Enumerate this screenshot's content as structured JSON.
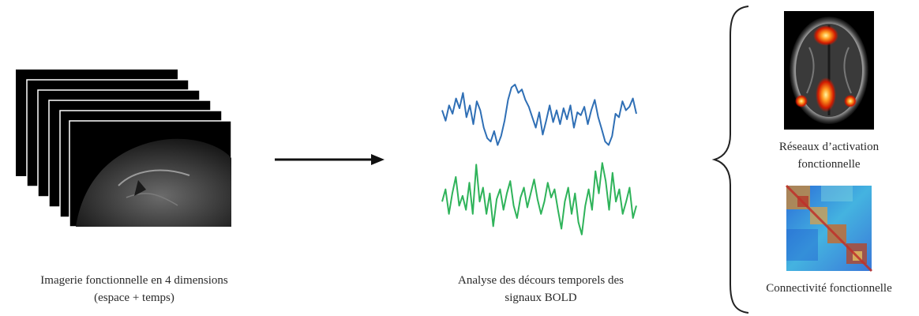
{
  "panels": {
    "imaging": {
      "caption_line1": "Imagerie fonctionnelle en 4 dimensions",
      "caption_line2": "(espace + temps)",
      "frame_count": 6
    },
    "signals": {
      "caption_line1": "Analyse des décours temporels des",
      "caption_line2": "signaux BOLD",
      "series": [
        {
          "color": "#2f6fb5",
          "values": [
            0.55,
            0.4,
            0.62,
            0.5,
            0.72,
            0.58,
            0.8,
            0.45,
            0.62,
            0.35,
            0.68,
            0.55,
            0.3,
            0.15,
            0.1,
            0.25,
            0.05,
            0.18,
            0.4,
            0.7,
            0.88,
            0.92,
            0.8,
            0.85,
            0.7,
            0.6,
            0.45,
            0.3,
            0.52,
            0.2,
            0.4,
            0.62,
            0.38,
            0.55,
            0.35,
            0.58,
            0.42,
            0.62,
            0.3,
            0.52,
            0.48,
            0.6,
            0.35,
            0.55,
            0.7,
            0.45,
            0.28,
            0.1,
            0.05,
            0.18,
            0.5,
            0.45,
            0.68,
            0.55,
            0.6,
            0.72,
            0.5
          ]
        },
        {
          "color": "#2fb35a",
          "values": [
            0.45,
            0.6,
            0.3,
            0.55,
            0.75,
            0.4,
            0.52,
            0.35,
            0.68,
            0.3,
            0.9,
            0.45,
            0.62,
            0.3,
            0.55,
            0.15,
            0.48,
            0.6,
            0.35,
            0.55,
            0.7,
            0.4,
            0.25,
            0.5,
            0.62,
            0.38,
            0.55,
            0.72,
            0.48,
            0.3,
            0.45,
            0.68,
            0.5,
            0.6,
            0.35,
            0.12,
            0.45,
            0.62,
            0.3,
            0.55,
            0.2,
            0.05,
            0.4,
            0.6,
            0.35,
            0.82,
            0.55,
            0.92,
            0.7,
            0.35,
            0.8,
            0.45,
            0.6,
            0.3,
            0.45,
            0.62,
            0.25,
            0.4
          ]
        }
      ]
    },
    "outputs": {
      "activation_caption_line1": "Réseaux d’activation",
      "activation_caption_line2": "fonctionnelle",
      "connectivity_caption": "Connectivité fonctionnelle"
    }
  },
  "colors": {
    "arrow": "#111111",
    "brace": "#222222"
  }
}
